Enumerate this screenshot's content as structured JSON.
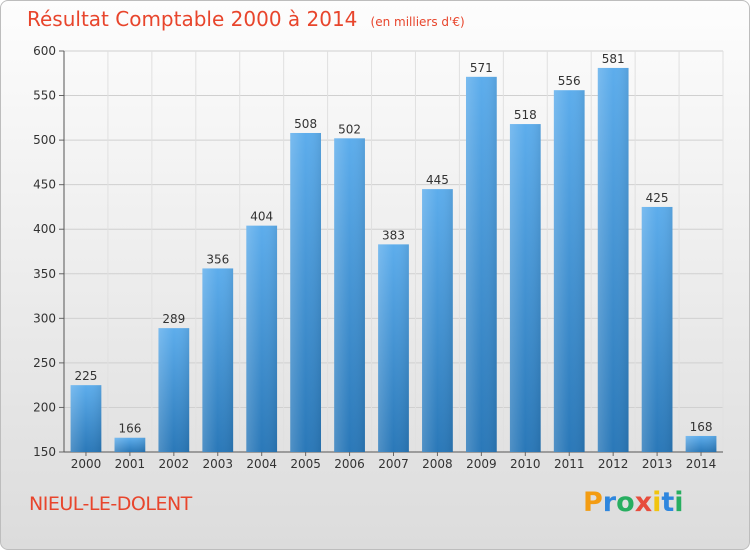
{
  "title": "Résultat Comptable 2000 à 2014",
  "subtitle": "(en milliers d'€)",
  "commune": "NIEUL-LE-DOLENT",
  "logo": {
    "text": "Proxiti",
    "letters": [
      "P",
      "r",
      "o",
      "x",
      "i",
      "t",
      "i"
    ],
    "colors": [
      "#f39c12",
      "#2e86de",
      "#27ae60",
      "#e74c3c",
      "#f1c40f",
      "#2e86de",
      "#27ae60"
    ]
  },
  "colors": {
    "accent": "#e8452c",
    "bar_top": "#5dadec",
    "bar_bottom": "#2a78b8"
  },
  "chart_data": {
    "type": "bar",
    "categories": [
      "2000",
      "2001",
      "2002",
      "2003",
      "2004",
      "2005",
      "2006",
      "2007",
      "2008",
      "2009",
      "2010",
      "2011",
      "2012",
      "2013",
      "2014"
    ],
    "values": [
      225,
      166,
      289,
      356,
      404,
      508,
      502,
      383,
      445,
      571,
      518,
      556,
      581,
      425,
      168
    ],
    "ylim": [
      150,
      600
    ],
    "yticks": [
      150,
      200,
      250,
      300,
      350,
      400,
      450,
      500,
      550,
      600
    ],
    "grid": true,
    "xlabel": "",
    "ylabel": ""
  }
}
